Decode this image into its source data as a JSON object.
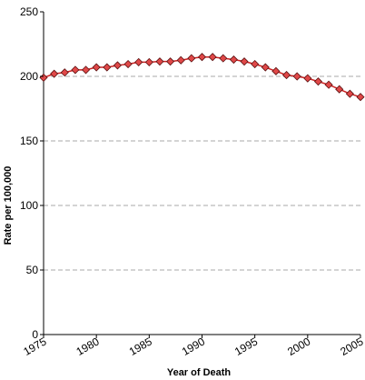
{
  "chart_data": {
    "type": "line",
    "title": "",
    "xlabel": "Year of Death",
    "ylabel": "Rate per 100,000",
    "xlim": [
      1975,
      2005
    ],
    "ylim": [
      0,
      250
    ],
    "x_ticks": [
      1975,
      1980,
      1985,
      1990,
      1995,
      2000,
      2005
    ],
    "x_tick_labels": [
      "1975",
      "1980",
      "1985",
      "1990",
      "1995",
      "2000",
      "2005"
    ],
    "y_ticks": [
      0,
      50,
      100,
      150,
      200,
      250
    ],
    "y_tick_labels": [
      "0",
      "50",
      "100",
      "150",
      "200",
      "250"
    ],
    "grid": "horizontal dashed",
    "legend": "none",
    "series": [
      {
        "color": "#cc2222",
        "marker_color": "#e04848",
        "x": [
          1975,
          1976,
          1977,
          1978,
          1979,
          1980,
          1981,
          1982,
          1983,
          1984,
          1985,
          1986,
          1987,
          1988,
          1989,
          1990,
          1991,
          1992,
          1993,
          1994,
          1995,
          1996,
          1997,
          1998,
          1999,
          2000,
          2001,
          2002,
          2003,
          2004,
          2005
        ],
        "values": [
          199.0,
          202.0,
          203.0,
          205.0,
          205.0,
          207.0,
          207.0,
          208.5,
          209.5,
          211.0,
          211.0,
          211.5,
          211.5,
          212.5,
          214.0,
          215.0,
          215.0,
          214.0,
          213.0,
          211.5,
          209.5,
          207.0,
          204.0,
          201.0,
          200.0,
          198.5,
          196.0,
          193.5,
          190.0,
          186.5,
          184.0
        ]
      }
    ]
  }
}
